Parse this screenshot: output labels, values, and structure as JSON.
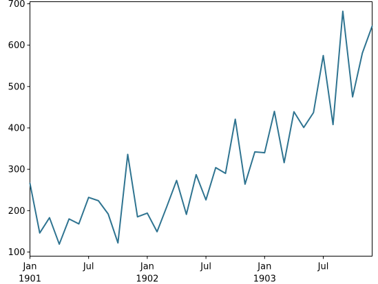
{
  "chart_data": {
    "type": "line",
    "title": "",
    "xlabel": "",
    "ylabel": "",
    "ylim": [
      90,
      705
    ],
    "y_ticks": [
      100,
      200,
      300,
      400,
      500,
      600,
      700
    ],
    "y_tick_labels": [
      "100",
      "200",
      "300",
      "400",
      "500",
      "600",
      "700"
    ],
    "x_ticks": [
      {
        "month_index": 0,
        "label": "Jan",
        "sublabel": "1901"
      },
      {
        "month_index": 6,
        "label": "Jul",
        "sublabel": ""
      },
      {
        "month_index": 12,
        "label": "Jan",
        "sublabel": "1902"
      },
      {
        "month_index": 18,
        "label": "Jul",
        "sublabel": ""
      },
      {
        "month_index": 24,
        "label": "Jan",
        "sublabel": "1903"
      },
      {
        "month_index": 30,
        "label": "Jul",
        "sublabel": ""
      }
    ],
    "x": [
      "1901-01",
      "1901-02",
      "1901-03",
      "1901-04",
      "1901-05",
      "1901-06",
      "1901-07",
      "1901-08",
      "1901-09",
      "1901-10",
      "1901-11",
      "1901-12",
      "1902-01",
      "1902-02",
      "1902-03",
      "1902-04",
      "1902-05",
      "1902-06",
      "1902-07",
      "1902-08",
      "1902-09",
      "1902-10",
      "1902-11",
      "1902-12",
      "1903-01",
      "1903-02",
      "1903-03",
      "1903-04",
      "1903-05",
      "1903-06",
      "1903-07",
      "1903-08",
      "1903-09",
      "1903-10",
      "1903-11",
      "1903-12"
    ],
    "series": [
      {
        "color": "#2e7390",
        "values": [
          266,
          146,
          183,
          119,
          180,
          168,
          232,
          224,
          192,
          122,
          336,
          185,
          194,
          149,
          210,
          273,
          191,
          287,
          226,
          304,
          290,
          421,
          264,
          342,
          340,
          440,
          316,
          439,
          401,
          437,
          575,
          408,
          682,
          475,
          581,
          646
        ]
      }
    ],
    "grid": false
  }
}
